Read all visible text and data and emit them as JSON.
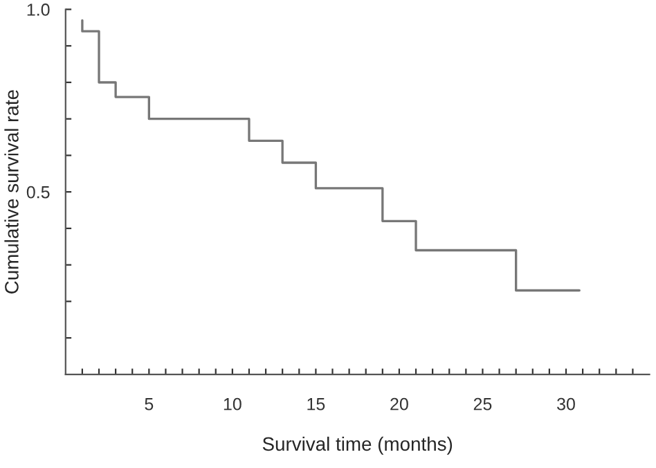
{
  "chart_data": {
    "type": "step",
    "xlabel": "Survival time (months)",
    "ylabel": "Cumulative survival rate",
    "x": [
      1,
      1,
      2,
      3,
      5,
      11,
      13,
      15,
      19,
      21,
      27,
      30.8
    ],
    "series": [
      {
        "color": "#777777",
        "values": [
          0.97,
          0.94,
          0.8,
          0.76,
          0.7,
          0.64,
          0.58,
          0.51,
          0.42,
          0.34,
          0.23,
          0.23
        ]
      }
    ],
    "xlim": [
      0,
      35
    ],
    "ylim": [
      0,
      1
    ],
    "xticks": [
      {
        "value": 1,
        "label": null
      },
      {
        "value": 2,
        "label": null
      },
      {
        "value": 3,
        "label": null
      },
      {
        "value": 4,
        "label": null
      },
      5,
      {
        "value": 6,
        "label": null
      },
      {
        "value": 7,
        "label": null
      },
      {
        "value": 8,
        "label": null
      },
      {
        "value": 9,
        "label": null
      },
      10,
      {
        "value": 11,
        "label": null
      },
      {
        "value": 12,
        "label": null
      },
      {
        "value": 13,
        "label": null
      },
      {
        "value": 14,
        "label": null
      },
      15,
      {
        "value": 16,
        "label": null
      },
      {
        "value": 17,
        "label": null
      },
      {
        "value": 18,
        "label": null
      },
      {
        "value": 19,
        "label": null
      },
      20,
      {
        "value": 21,
        "label": null
      },
      {
        "value": 22,
        "label": null
      },
      {
        "value": 23,
        "label": null
      },
      {
        "value": 24,
        "label": null
      },
      25,
      {
        "value": 26,
        "label": null
      },
      {
        "value": 27,
        "label": null
      },
      {
        "value": 28,
        "label": null
      },
      {
        "value": 29,
        "label": null
      },
      30,
      {
        "value": 31,
        "label": null
      },
      {
        "value": 32,
        "label": null
      },
      {
        "value": 33,
        "label": null
      },
      {
        "value": 34,
        "label": null
      }
    ],
    "yticks": [
      {
        "value": 0.1,
        "label": null
      },
      {
        "value": 0.2,
        "label": null
      },
      {
        "value": 0.3,
        "label": null
      },
      {
        "value": 0.4,
        "label": null
      },
      {
        "value": 0.5,
        "label": "0.5"
      },
      {
        "value": 0.6,
        "label": null
      },
      {
        "value": 0.7,
        "label": null
      },
      {
        "value": 0.8,
        "label": null
      },
      {
        "value": 0.9,
        "label": null
      },
      {
        "value": 1,
        "label": "1.0"
      }
    ],
    "grid": false,
    "legend": false,
    "line_style": "solid",
    "marker": "none"
  }
}
